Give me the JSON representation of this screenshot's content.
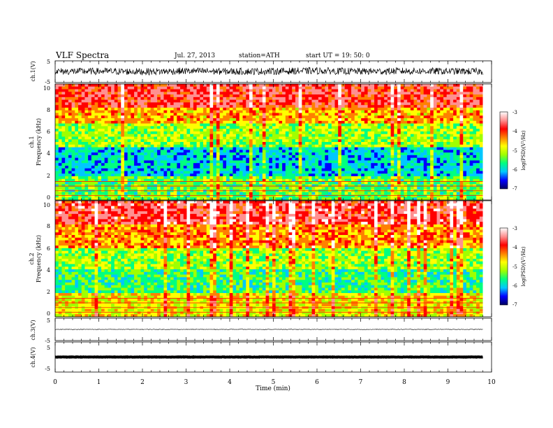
{
  "header": {
    "title": "VLF  Spectra",
    "date": "Jul.  27,  2013",
    "station": "station=ATH",
    "start": "start  UT  =    19: 50: 0"
  },
  "colorbar_ticks": [
    "-3",
    "-4",
    "-5",
    "-6",
    "-7"
  ],
  "colorbar_colors": [
    "#000060",
    "#0000ff",
    "#00c8ff",
    "#00ff80",
    "#a0ff00",
    "#ffff00",
    "#ff8000",
    "#ff0000",
    "#ff9090",
    "#ffffff"
  ],
  "chart_data": [
    {
      "type": "line",
      "panel": "ch1-waveform",
      "ylabel": "ch.1(V)",
      "ylim": [
        -5,
        5
      ],
      "y_ticks": [
        "5",
        "-5"
      ],
      "x": [
        0,
        1,
        2,
        3,
        4,
        5,
        6,
        7,
        8,
        9,
        9.8
      ],
      "values": [
        0.1,
        0.2,
        0.0,
        0.3,
        0.1,
        0.2,
        0.4,
        0.1,
        0.3,
        0.2,
        0.1
      ]
    },
    {
      "type": "heatmap",
      "panel": "ch1-spectrogram",
      "ylabel_channel": "ch.1",
      "ylabel": "Frequency  (kHz)",
      "ylim": [
        0,
        10
      ],
      "y_ticks": [
        "0",
        "2",
        "4",
        "6",
        "8",
        "10"
      ],
      "colorbar_label": "log(PSD)(V²/Hz)",
      "colorbar_range": [
        -7,
        -3
      ],
      "x_range_min": [
        0,
        9.8
      ],
      "bands": [
        {
          "from_khz": 0,
          "to_khz": 2,
          "log_psd": -5.4
        },
        {
          "from_khz": 2,
          "to_khz": 4.5,
          "log_psd": -6.0
        },
        {
          "from_khz": 4.5,
          "to_khz": 6.5,
          "log_psd": -5.2
        },
        {
          "from_khz": 6.5,
          "to_khz": 8,
          "log_psd": -4.5
        },
        {
          "from_khz": 8,
          "to_khz": 10,
          "log_psd": -3.8
        }
      ]
    },
    {
      "type": "heatmap",
      "panel": "ch2-spectrogram",
      "ylabel_channel": "ch.2",
      "ylabel": "Frequency  (kHz)",
      "ylim": [
        0,
        10
      ],
      "y_ticks": [
        "0",
        "2",
        "4",
        "6",
        "8",
        "10"
      ],
      "colorbar_label": "log(PSD)(V²/Hz)",
      "colorbar_range": [
        -7,
        -3
      ],
      "x_range_min": [
        0,
        9.8
      ],
      "bands": [
        {
          "from_khz": 0,
          "to_khz": 2,
          "log_psd": -4.8
        },
        {
          "from_khz": 2,
          "to_khz": 4,
          "log_psd": -5.6
        },
        {
          "from_khz": 4,
          "to_khz": 6,
          "log_psd": -5.2
        },
        {
          "from_khz": 6,
          "to_khz": 8,
          "log_psd": -4.4
        },
        {
          "from_khz": 8,
          "to_khz": 10,
          "log_psd": -3.7
        }
      ]
    },
    {
      "type": "line",
      "panel": "ch3-waveform",
      "ylabel": "ch.3(V)",
      "ylim": [
        -5,
        5
      ],
      "y_ticks": [
        "5",
        "-5"
      ],
      "x": [
        0,
        1,
        2,
        3,
        4,
        5,
        6,
        7,
        8,
        9,
        9.8
      ],
      "values": [
        0,
        0,
        0,
        0,
        0,
        0,
        0,
        0,
        0,
        0,
        0
      ]
    },
    {
      "type": "line",
      "panel": "ch4-waveform",
      "ylabel": "ch.4(V)",
      "ylim": [
        -5,
        5
      ],
      "y_ticks": [
        "5",
        "-5"
      ],
      "x": [
        0,
        1,
        2,
        3,
        4,
        5,
        6,
        7,
        8,
        9,
        9.8
      ],
      "values": [
        0,
        0,
        0,
        0,
        0,
        0,
        0,
        0,
        0,
        0,
        0
      ]
    }
  ],
  "x_axis": {
    "label": "Time  (min)",
    "range": [
      0,
      10
    ],
    "ticks": [
      "0",
      "1",
      "2",
      "3",
      "4",
      "5",
      "6",
      "7",
      "8",
      "9",
      "10"
    ]
  }
}
